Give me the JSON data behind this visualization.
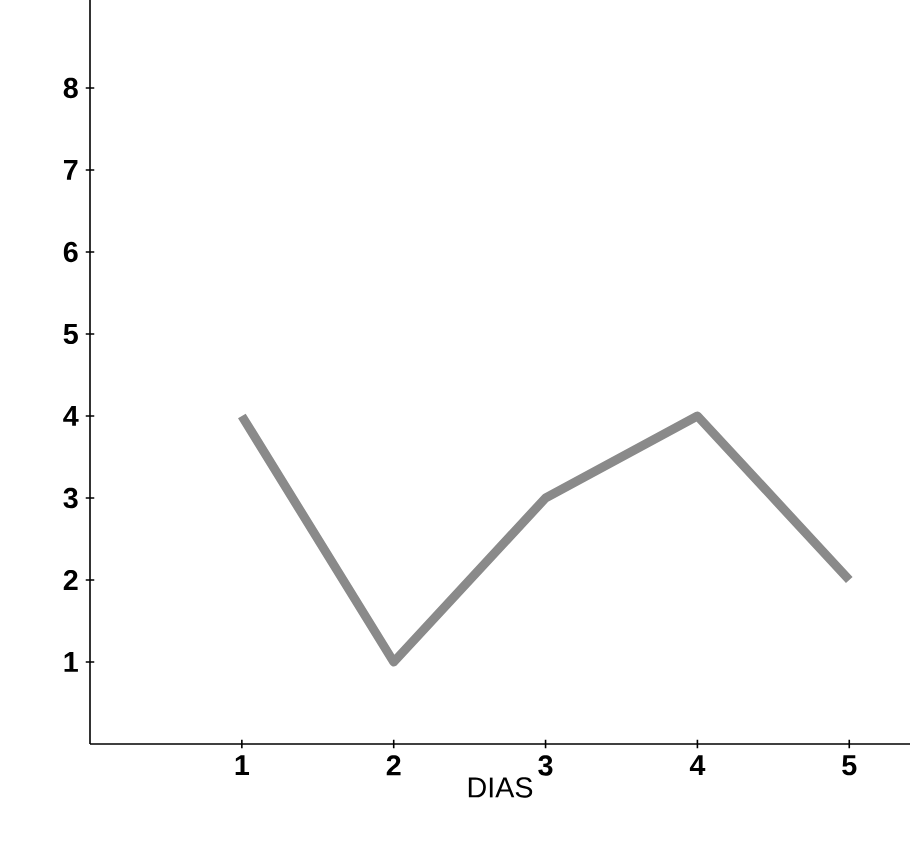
{
  "chart_data": {
    "type": "line",
    "xlabel": "DIAS",
    "x": [
      1,
      2,
      3,
      4,
      5
    ],
    "values": [
      4,
      1,
      3,
      4,
      2
    ],
    "color": "#8a8a8a",
    "xlim": [
      0,
      5.4
    ],
    "ylim": [
      0,
      10
    ],
    "xticks": [
      1,
      2,
      3,
      4,
      5
    ],
    "yticks": [
      1,
      2,
      3,
      4,
      5,
      6,
      7,
      8
    ]
  }
}
